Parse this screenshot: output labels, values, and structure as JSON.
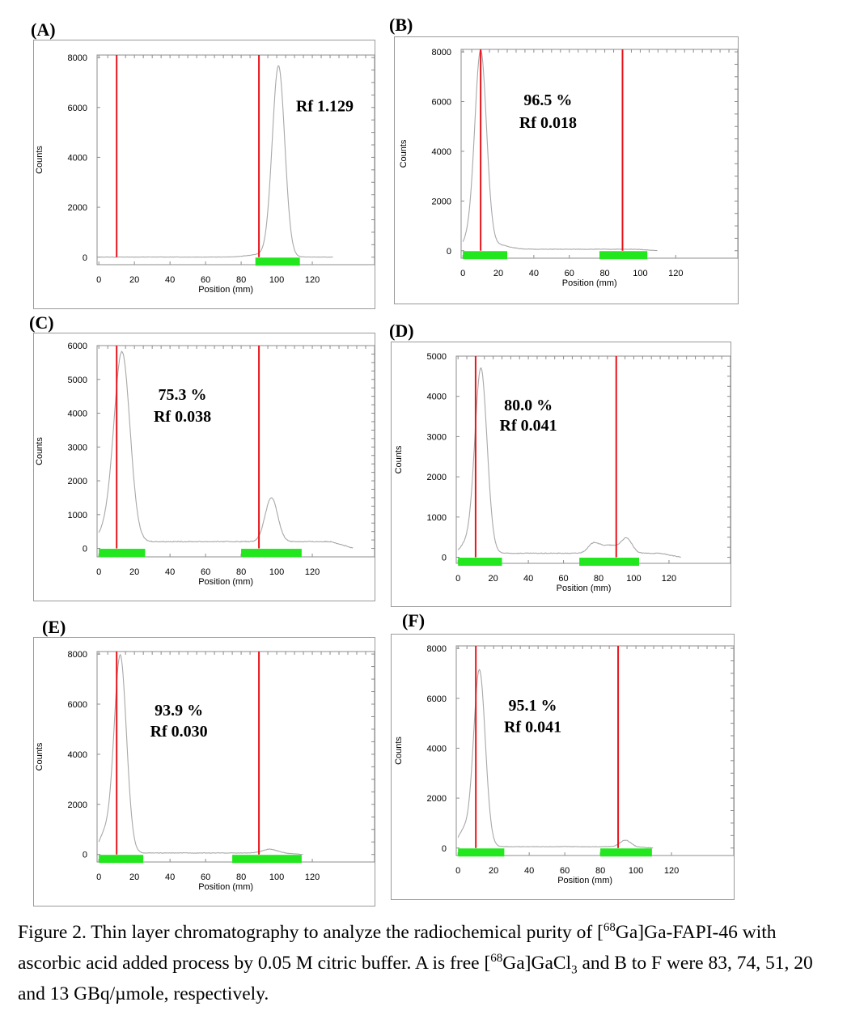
{
  "panels": [
    {
      "label": "(A)"
    },
    {
      "label": "(B)"
    },
    {
      "label": "(C)"
    },
    {
      "label": "(D)"
    },
    {
      "label": "(E)"
    },
    {
      "label": "(F)"
    }
  ],
  "caption": {
    "p1": "Figure 2. Thin layer chromatography to analyze the radiochemical purity of [",
    "sup1": "68",
    "p2": "Ga]Ga-FAPI-46 with ascorbic acid added process by 0.05 M citric buffer. A is free [",
    "sup2": "68",
    "p3": "Ga]GaCl",
    "sub1": "3",
    "p4": " and B to F were 83, 74, 51, 20 and 13 GBq/µmole, respectively."
  },
  "colors": {
    "marker": "#e8141c",
    "band": "#22e61e",
    "trace": "#a8a8a8",
    "frame": "#8c8c8c"
  },
  "chart_data": [
    {
      "type": "line",
      "panel": "A",
      "xlabel": "Position (mm)",
      "ylabel": "Counts",
      "xlim": [
        -1,
        155
      ],
      "ylim": [
        -300,
        8100
      ],
      "xticks": [
        0,
        20,
        40,
        60,
        80,
        100,
        120
      ],
      "yticks": [
        0,
        2000,
        4000,
        6000,
        8000
      ],
      "markers": [
        10,
        90
      ],
      "bands": [
        [
          88,
          113
        ]
      ],
      "peaks": [
        {
          "x": 101,
          "h": 7600,
          "w": 3.5
        },
        {
          "x": 93,
          "h": 120,
          "w": 8
        }
      ],
      "baseline": 5,
      "trace_start": 0,
      "trace_end": 132,
      "noise": 15,
      "annotations": [
        {
          "text": "Rf 1.129",
          "x": 127,
          "y": 5850
        }
      ]
    },
    {
      "type": "line",
      "panel": "B",
      "xlabel": "Position (mm)",
      "ylabel": "Counts",
      "xlim": [
        -1,
        155
      ],
      "ylim": [
        -300,
        8100
      ],
      "xticks": [
        0,
        20,
        40,
        60,
        80,
        100,
        120
      ],
      "yticks": [
        0,
        2000,
        4000,
        6000,
        8000
      ],
      "markers": [
        10,
        90
      ],
      "bands": [
        [
          0,
          25
        ],
        [
          77,
          104
        ]
      ],
      "peaks": [
        {
          "x": 10,
          "h": 7900,
          "w": 3.3
        },
        {
          "x": 3,
          "h": 350,
          "w": 3
        },
        {
          "x": 18,
          "h": 200,
          "w": 7
        }
      ],
      "baseline": 60,
      "trace_start": 0,
      "trace_end": 110,
      "noise": 20,
      "annotations": [
        {
          "text": "96.5 %",
          "x": 48,
          "y": 5850
        },
        {
          "text": "Rf 0.018",
          "x": 48,
          "y": 4950
        }
      ]
    },
    {
      "type": "line",
      "panel": "C",
      "xlabel": "Position (mm)",
      "ylabel": "Counts",
      "xlim": [
        -1,
        155
      ],
      "ylim": [
        -250,
        6000
      ],
      "xticks": [
        0,
        20,
        40,
        60,
        80,
        100,
        120
      ],
      "yticks": [
        0,
        1000,
        2000,
        3000,
        4000,
        5000,
        6000
      ],
      "markers": [
        10,
        90
      ],
      "bands": [
        [
          0,
          26
        ],
        [
          80,
          114
        ]
      ],
      "peaks": [
        {
          "x": 13,
          "h": 5600,
          "w": 4.5
        },
        {
          "x": 97,
          "h": 1300,
          "w": 3.5
        },
        {
          "x": 4,
          "h": 300,
          "w": 4
        }
      ],
      "baseline": 200,
      "trace_start": 0,
      "trace_end": 143,
      "noise": 25,
      "annotations": [
        {
          "text": "75.3 %",
          "x": 47,
          "y": 4400
        },
        {
          "text": "Rf 0.038",
          "x": 47,
          "y": 3750
        }
      ]
    },
    {
      "type": "line",
      "panel": "D",
      "xlabel": "Position (mm)",
      "ylabel": "Counts",
      "xlim": [
        -1,
        155
      ],
      "ylim": [
        -150,
        5000
      ],
      "xticks": [
        0,
        20,
        40,
        60,
        80,
        100,
        120
      ],
      "yticks": [
        0,
        1000,
        2000,
        3000,
        4000,
        5000
      ],
      "markers": [
        10,
        90
      ],
      "bands": [
        [
          0,
          25
        ],
        [
          69,
          103
        ]
      ],
      "peaks": [
        {
          "x": 13,
          "h": 4600,
          "w": 3.5
        },
        {
          "x": 96,
          "h": 330,
          "w": 3
        },
        {
          "x": 77,
          "h": 200,
          "w": 3
        },
        {
          "x": 86,
          "h": 200,
          "w": 6
        },
        {
          "x": 4,
          "h": 200,
          "w": 3
        }
      ],
      "baseline": 100,
      "trace_start": 0,
      "trace_end": 127,
      "noise": 18,
      "annotations": [
        {
          "text": "80.0 %",
          "x": 40,
          "y": 3650
        },
        {
          "text": "Rf 0.041",
          "x": 40,
          "y": 3150
        }
      ]
    },
    {
      "type": "line",
      "panel": "E",
      "xlabel": "Position (mm)",
      "ylabel": "Counts",
      "xlim": [
        -1,
        155
      ],
      "ylim": [
        -300,
        8100
      ],
      "xticks": [
        0,
        20,
        40,
        60,
        80,
        100,
        120
      ],
      "yticks": [
        0,
        2000,
        4000,
        6000,
        8000
      ],
      "markers": [
        10,
        90
      ],
      "bands": [
        [
          0,
          25
        ],
        [
          75,
          114
        ]
      ],
      "peaks": [
        {
          "x": 12,
          "h": 7900,
          "w": 3.5
        },
        {
          "x": 3,
          "h": 700,
          "w": 3
        },
        {
          "x": 96,
          "h": 150,
          "w": 4
        }
      ],
      "baseline": 60,
      "trace_start": 0,
      "trace_end": 115,
      "noise": 20,
      "annotations": [
        {
          "text": "93.9 %",
          "x": 45,
          "y": 5550
        },
        {
          "text": "Rf 0.030",
          "x": 45,
          "y": 4700
        }
      ]
    },
    {
      "type": "line",
      "panel": "F",
      "xlabel": "Position (mm)",
      "ylabel": "Counts",
      "xlim": [
        -1,
        155
      ],
      "ylim": [
        -300,
        8100
      ],
      "xticks": [
        0,
        20,
        40,
        60,
        80,
        100,
        120
      ],
      "yticks": [
        0,
        2000,
        4000,
        6000,
        8000
      ],
      "markers": [
        10,
        90
      ],
      "bands": [
        [
          0,
          26
        ],
        [
          80,
          109
        ]
      ],
      "peaks": [
        {
          "x": 12,
          "h": 7100,
          "w": 3.3
        },
        {
          "x": 3,
          "h": 600,
          "w": 3
        },
        {
          "x": 94,
          "h": 260,
          "w": 3
        }
      ],
      "baseline": 55,
      "trace_start": 0,
      "trace_end": 110,
      "noise": 20,
      "annotations": [
        {
          "text": "95.1 %",
          "x": 42,
          "y": 5500
        },
        {
          "text": "Rf 0.041",
          "x": 42,
          "y": 4650
        }
      ]
    }
  ]
}
